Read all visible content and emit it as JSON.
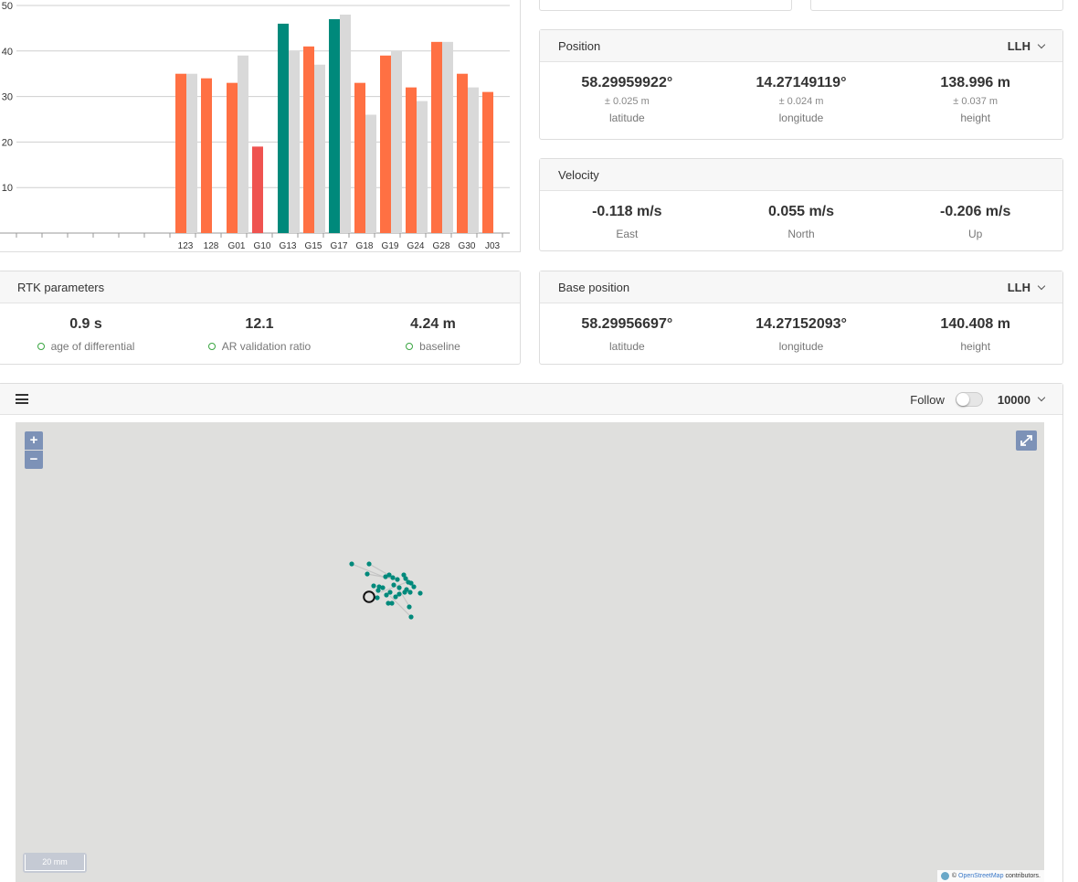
{
  "chart_data": {
    "type": "bar",
    "ylim": [
      0,
      50
    ],
    "yticks": [
      10,
      20,
      30,
      40,
      50
    ],
    "categories": [
      "123",
      "128",
      "G01",
      "G10",
      "G13",
      "G15",
      "G17",
      "G18",
      "G19",
      "G24",
      "G28",
      "G30",
      "J03"
    ],
    "series": [
      {
        "values": [
          35,
          34,
          33,
          19,
          46,
          41,
          47,
          33,
          39,
          32,
          42,
          35,
          31
        ],
        "colors": [
          "#ff7043",
          "#ff7043",
          "#ff7043",
          "#ef5350",
          "#00897b",
          "#ff7043",
          "#00897b",
          "#ff7043",
          "#ff7043",
          "#ff7043",
          "#ff7043",
          "#ff7043",
          "#ff7043"
        ]
      },
      {
        "values": [
          35,
          null,
          39,
          null,
          40,
          37,
          48,
          26,
          40,
          29,
          42,
          32,
          null
        ],
        "color": "#d9d9d9"
      }
    ]
  },
  "position": {
    "title": "Position",
    "mode": "LLH",
    "items": [
      {
        "value": "58.29959922°",
        "accuracy": "± 0.025 m",
        "label": "latitude"
      },
      {
        "value": "14.27149119°",
        "accuracy": "± 0.024 m",
        "label": "longitude"
      },
      {
        "value": "138.996 m",
        "accuracy": "± 0.037 m",
        "label": "height"
      }
    ]
  },
  "velocity": {
    "title": "Velocity",
    "items": [
      {
        "value": "-0.118 m/s",
        "label": "East"
      },
      {
        "value": "0.055 m/s",
        "label": "North"
      },
      {
        "value": "-0.206 m/s",
        "label": "Up"
      }
    ]
  },
  "rtk": {
    "title": "RTK parameters",
    "items": [
      {
        "value": "0.9 s",
        "label": "age of differential"
      },
      {
        "value": "12.1",
        "label": "AR validation ratio"
      },
      {
        "value": "4.24 m",
        "label": "baseline"
      }
    ]
  },
  "base_position": {
    "title": "Base position",
    "mode": "LLH",
    "items": [
      {
        "value": "58.29956697°",
        "label": "latitude"
      },
      {
        "value": "14.27152093°",
        "label": "longitude"
      },
      {
        "value": "140.408 m",
        "label": "height"
      }
    ]
  },
  "map": {
    "follow_label": "Follow",
    "follow_enabled": false,
    "history_count": "10000",
    "zoom_in": "+",
    "zoom_out": "−",
    "scale_label": "20 mm",
    "attribution_prefix": "©",
    "attribution_link": "OpenStreetMap",
    "attribution_suffix": "contributors.",
    "track_color": "#00897b"
  }
}
